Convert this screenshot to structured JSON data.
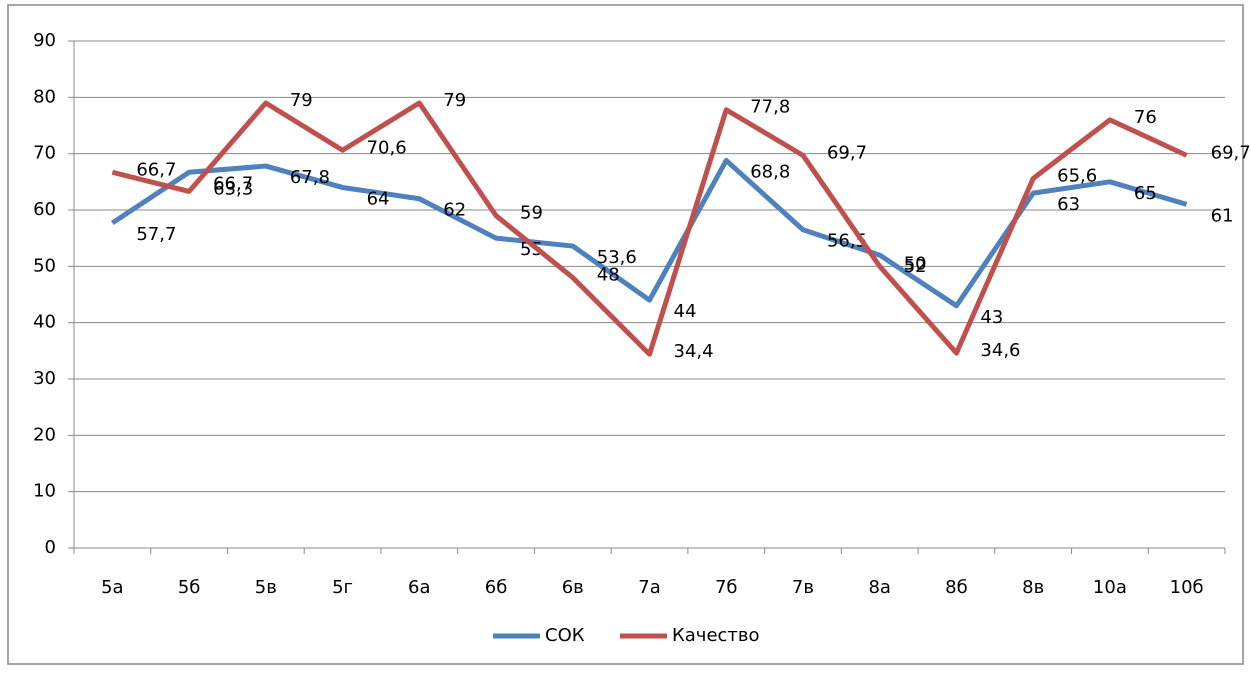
{
  "chart_data": {
    "type": "line",
    "categories": [
      "5а",
      "5б",
      "5в",
      "5г",
      "6а",
      "6б",
      "6в",
      "7а",
      "7б",
      "7в",
      "8а",
      "8б",
      "8в",
      "10а",
      "10б"
    ],
    "series": [
      {
        "name": "СОК",
        "color": "#4f81bd",
        "values": [
          57.7,
          66.7,
          67.8,
          64,
          62,
          55,
          53.6,
          44,
          68.8,
          56.5,
          52,
          43,
          63,
          65,
          61
        ],
        "value_labels": [
          "57,7",
          "66,7",
          "67,8",
          "64",
          "62",
          "55",
          "53,6",
          "44",
          "68,8",
          "56,5",
          "52",
          "43",
          "63",
          "65",
          "61"
        ]
      },
      {
        "name": "Качество",
        "color": "#c0504d",
        "values": [
          66.7,
          63.3,
          79,
          70.6,
          79,
          59,
          48,
          34.4,
          77.8,
          69.7,
          50,
          34.6,
          65.6,
          76,
          69.7
        ],
        "value_labels": [
          "66,7",
          "63,3",
          "79",
          "70,6",
          "79",
          "59",
          "48",
          "34,4",
          "77,8",
          "69,7",
          "50",
          "34,6",
          "65,6",
          "76",
          "69,7"
        ]
      }
    ],
    "ylim": [
      0,
      90
    ],
    "yticks": [
      0,
      10,
      20,
      30,
      40,
      50,
      60,
      70,
      80,
      90
    ],
    "grid": true,
    "legend": "bottom"
  }
}
